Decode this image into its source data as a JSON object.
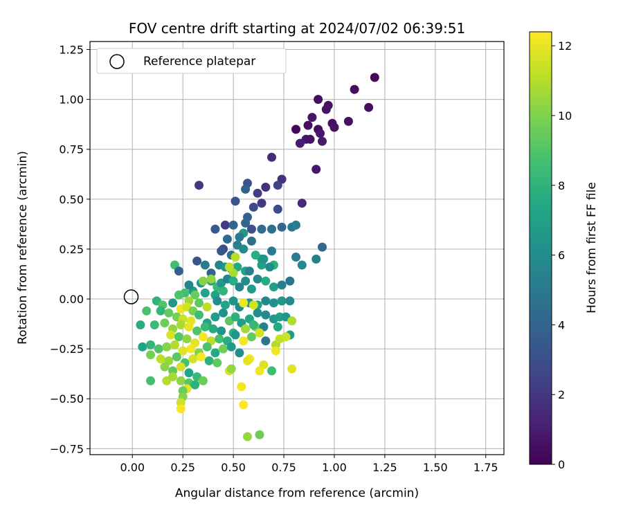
{
  "chart_data": {
    "type": "scatter",
    "title": "FOV centre drift starting at 2024/07/02 06:39:51",
    "xlabel": "Angular distance from reference (arcmin)",
    "ylabel": "Rotation from reference (arcmin)",
    "xlim": [
      -0.21,
      1.84
    ],
    "ylim": [
      -0.78,
      1.29
    ],
    "xticks": [
      0.0,
      0.25,
      0.5,
      0.75,
      1.0,
      1.25,
      1.5,
      1.75
    ],
    "xtick_labels": [
      "0.00",
      "0.25",
      "0.50",
      "0.75",
      "1.00",
      "1.25",
      "1.50",
      "1.75"
    ],
    "yticks": [
      -0.75,
      -0.5,
      -0.25,
      0.0,
      0.25,
      0.5,
      0.75,
      1.0,
      1.25
    ],
    "ytick_labels": [
      "−0.75",
      "−0.50",
      "−0.25",
      "0.00",
      "0.25",
      "0.50",
      "0.75",
      "1.00",
      "1.25"
    ],
    "grid": true,
    "legend": {
      "placement": "upper-left",
      "entries": [
        "Reference platepar"
      ]
    },
    "reference_point": {
      "x": 0.0,
      "y": 0.0,
      "marker": "open-circle"
    },
    "colorbar": {
      "label": "Hours from first FF file",
      "colormap": "viridis",
      "range": [
        0,
        12.4
      ],
      "ticks": [
        0,
        2,
        4,
        6,
        8,
        10,
        12
      ],
      "tick_labels": [
        "0",
        "2",
        "4",
        "6",
        "8",
        "10",
        "12"
      ]
    },
    "points": [
      [
        1.2,
        1.11,
        0.3
      ],
      [
        1.1,
        1.05,
        0.4
      ],
      [
        0.92,
        1.0,
        0.5
      ],
      [
        0.97,
        0.97,
        0.6
      ],
      [
        1.17,
        0.96,
        0.5
      ],
      [
        0.96,
        0.95,
        0.6
      ],
      [
        0.89,
        0.91,
        0.7
      ],
      [
        1.07,
        0.89,
        0.5
      ],
      [
        0.99,
        0.88,
        0.4
      ],
      [
        1.0,
        0.86,
        0.6
      ],
      [
        0.87,
        0.87,
        0.5
      ],
      [
        0.81,
        0.85,
        0.3
      ],
      [
        0.92,
        0.85,
        0.4
      ],
      [
        0.93,
        0.83,
        0.8
      ],
      [
        0.86,
        0.8,
        0.7
      ],
      [
        0.88,
        0.8,
        0.6
      ],
      [
        0.94,
        0.79,
        0.9
      ],
      [
        0.83,
        0.78,
        1.0
      ],
      [
        0.69,
        0.71,
        1.6
      ],
      [
        0.91,
        0.65,
        0.8
      ],
      [
        0.74,
        0.6,
        1.8
      ],
      [
        0.66,
        0.56,
        1.7
      ],
      [
        0.72,
        0.57,
        2.5
      ],
      [
        0.33,
        0.57,
        2.0
      ],
      [
        0.57,
        0.58,
        3.1
      ],
      [
        0.56,
        0.55,
        3.8
      ],
      [
        0.62,
        0.53,
        2.2
      ],
      [
        0.84,
        0.48,
        1.5
      ],
      [
        0.64,
        0.48,
        2.0
      ],
      [
        0.6,
        0.46,
        2.9
      ],
      [
        0.51,
        0.49,
        3.2
      ],
      [
        0.72,
        0.45,
        2.8
      ],
      [
        0.57,
        0.41,
        3.7
      ],
      [
        0.46,
        0.37,
        2.1
      ],
      [
        0.41,
        0.35,
        3.5
      ],
      [
        0.5,
        0.37,
        4.0
      ],
      [
        0.56,
        0.38,
        4.1
      ],
      [
        0.59,
        0.35,
        3.0
      ],
      [
        0.64,
        0.35,
        4.4
      ],
      [
        0.69,
        0.35,
        4.5
      ],
      [
        0.74,
        0.36,
        4.2
      ],
      [
        0.79,
        0.36,
        5.0
      ],
      [
        0.81,
        0.37,
        5.2
      ],
      [
        0.55,
        0.33,
        6.6
      ],
      [
        0.47,
        0.3,
        4.3
      ],
      [
        0.53,
        0.31,
        5.0
      ],
      [
        0.59,
        0.29,
        4.5
      ],
      [
        0.45,
        0.25,
        2.7
      ],
      [
        0.44,
        0.24,
        3.4
      ],
      [
        0.49,
        0.22,
        4.8
      ],
      [
        0.52,
        0.27,
        5.3
      ],
      [
        0.55,
        0.25,
        6.0
      ],
      [
        0.64,
        0.2,
        6.5
      ],
      [
        0.69,
        0.24,
        5.0
      ],
      [
        0.81,
        0.21,
        5.1
      ],
      [
        0.84,
        0.17,
        5.8
      ],
      [
        0.94,
        0.26,
        4.2
      ],
      [
        0.91,
        0.2,
        5.4
      ],
      [
        0.32,
        0.19,
        3.3
      ],
      [
        0.36,
        0.17,
        5.1
      ],
      [
        0.21,
        0.17,
        8.6
      ],
      [
        0.23,
        0.14,
        3.7
      ],
      [
        0.39,
        0.13,
        3.9
      ],
      [
        0.43,
        0.17,
        5.6
      ],
      [
        0.46,
        0.16,
        6.4
      ],
      [
        0.49,
        0.15,
        6.9
      ],
      [
        0.52,
        0.16,
        7.5
      ],
      [
        0.56,
        0.14,
        7.2
      ],
      [
        0.58,
        0.14,
        5.3
      ],
      [
        0.61,
        0.22,
        7.8
      ],
      [
        0.64,
        0.17,
        7.0
      ],
      [
        0.7,
        0.17,
        7.9
      ],
      [
        0.65,
        0.2,
        6.3
      ],
      [
        0.68,
        0.16,
        5.9
      ],
      [
        0.5,
        0.13,
        10.7
      ],
      [
        0.48,
        0.16,
        11.2
      ],
      [
        0.51,
        0.21,
        11.1
      ],
      [
        0.39,
        0.09,
        6.9
      ],
      [
        0.42,
        0.06,
        8.3
      ],
      [
        0.44,
        0.08,
        6.6
      ],
      [
        0.47,
        0.1,
        5.7
      ],
      [
        0.5,
        0.09,
        7.7
      ],
      [
        0.53,
        0.06,
        5.5
      ],
      [
        0.56,
        0.09,
        6.0
      ],
      [
        0.59,
        0.05,
        6.8
      ],
      [
        0.62,
        0.1,
        5.7
      ],
      [
        0.66,
        0.09,
        7.6
      ],
      [
        0.7,
        0.06,
        6.9
      ],
      [
        0.74,
        0.07,
        5.3
      ],
      [
        0.78,
        0.09,
        4.8
      ],
      [
        0.3,
        0.04,
        6.8
      ],
      [
        0.26,
        0.03,
        8.6
      ],
      [
        0.28,
        0.07,
        5.6
      ],
      [
        0.34,
        0.08,
        6.2
      ],
      [
        0.36,
        0.03,
        7.1
      ],
      [
        0.41,
        0.02,
        7.3
      ],
      [
        0.45,
        0.04,
        8.1
      ],
      [
        0.23,
        0.02,
        8.9
      ],
      [
        0.31,
        0.02,
        9.5
      ],
      [
        0.39,
        0.1,
        10.3
      ],
      [
        0.35,
        0.09,
        10.1
      ],
      [
        0.28,
        -0.01,
        10.6
      ],
      [
        0.33,
        -0.02,
        9.3
      ],
      [
        0.37,
        -0.04,
        11.2
      ],
      [
        0.12,
        -0.01,
        8.0
      ],
      [
        0.15,
        -0.03,
        9.0
      ],
      [
        0.2,
        -0.02,
        6.6
      ],
      [
        0.24,
        -0.05,
        12.1
      ],
      [
        0.27,
        -0.04,
        11.6
      ],
      [
        0.3,
        -0.06,
        9.9
      ],
      [
        0.42,
        -0.01,
        6.0
      ],
      [
        0.46,
        -0.03,
        7.1
      ],
      [
        0.5,
        -0.01,
        6.2
      ],
      [
        0.53,
        -0.04,
        5.8
      ],
      [
        0.58,
        -0.02,
        6.4
      ],
      [
        0.62,
        -0.03,
        7.1
      ],
      [
        0.66,
        -0.01,
        5.7
      ],
      [
        0.7,
        -0.02,
        6.2
      ],
      [
        0.74,
        -0.01,
        6.5
      ],
      [
        0.78,
        -0.01,
        5.9
      ],
      [
        0.55,
        -0.02,
        12.1
      ],
      [
        0.6,
        -0.03,
        11.6
      ],
      [
        0.07,
        -0.06,
        8.8
      ],
      [
        0.14,
        -0.06,
        8.1
      ],
      [
        0.18,
        -0.07,
        9.4
      ],
      [
        0.22,
        -0.09,
        9.8
      ],
      [
        0.25,
        -0.1,
        11.4
      ],
      [
        0.29,
        -0.11,
        11.9
      ],
      [
        0.33,
        -0.08,
        8.5
      ],
      [
        0.37,
        -0.12,
        7.2
      ],
      [
        0.41,
        -0.09,
        6.8
      ],
      [
        0.45,
        -0.07,
        6.3
      ],
      [
        0.48,
        -0.11,
        9.2
      ],
      [
        0.51,
        -0.09,
        7.8
      ],
      [
        0.54,
        -0.12,
        6.9
      ],
      [
        0.58,
        -0.1,
        7.4
      ],
      [
        0.62,
        -0.07,
        6.1
      ],
      [
        0.66,
        -0.08,
        5.8
      ],
      [
        0.7,
        -0.1,
        6.6
      ],
      [
        0.73,
        -0.09,
        7.0
      ],
      [
        0.76,
        -0.09,
        6.4
      ],
      [
        0.79,
        -0.11,
        10.9
      ],
      [
        0.61,
        -0.14,
        9.7
      ],
      [
        0.04,
        -0.13,
        7.7
      ],
      [
        0.11,
        -0.13,
        8.4
      ],
      [
        0.16,
        -0.12,
        9.6
      ],
      [
        0.2,
        -0.15,
        10.4
      ],
      [
        0.24,
        -0.13,
        10.8
      ],
      [
        0.28,
        -0.14,
        12.0
      ],
      [
        0.32,
        -0.16,
        9.0
      ],
      [
        0.36,
        -0.14,
        8.3
      ],
      [
        0.4,
        -0.15,
        7.6
      ],
      [
        0.44,
        -0.16,
        6.4
      ],
      [
        0.5,
        -0.17,
        7.9
      ],
      [
        0.56,
        -0.15,
        10.6
      ],
      [
        0.6,
        -0.13,
        8.2
      ],
      [
        0.65,
        -0.14,
        5.3
      ],
      [
        0.72,
        -0.14,
        7.5
      ],
      [
        0.78,
        -0.18,
        6.7
      ],
      [
        0.19,
        -0.18,
        11.7
      ],
      [
        0.23,
        -0.19,
        9.1
      ],
      [
        0.27,
        -0.2,
        10.3
      ],
      [
        0.31,
        -0.22,
        11.9
      ],
      [
        0.35,
        -0.19,
        12.2
      ],
      [
        0.39,
        -0.21,
        11.1
      ],
      [
        0.43,
        -0.2,
        8.6
      ],
      [
        0.47,
        -0.21,
        7.7
      ],
      [
        0.51,
        -0.18,
        6.4
      ],
      [
        0.55,
        -0.21,
        12.2
      ],
      [
        0.59,
        -0.19,
        9.4
      ],
      [
        0.63,
        -0.17,
        11.6
      ],
      [
        0.66,
        -0.21,
        4.8
      ],
      [
        0.71,
        -0.23,
        10.9
      ],
      [
        0.73,
        -0.2,
        11.3
      ],
      [
        0.76,
        -0.19,
        11.4
      ],
      [
        0.05,
        -0.24,
        7.2
      ],
      [
        0.09,
        -0.23,
        8.1
      ],
      [
        0.13,
        -0.25,
        8.9
      ],
      [
        0.17,
        -0.24,
        10.1
      ],
      [
        0.21,
        -0.23,
        10.9
      ],
      [
        0.25,
        -0.26,
        11.8
      ],
      [
        0.29,
        -0.25,
        12.2
      ],
      [
        0.33,
        -0.27,
        10.0
      ],
      [
        0.37,
        -0.24,
        8.8
      ],
      [
        0.41,
        -0.27,
        7.5
      ],
      [
        0.45,
        -0.25,
        9.7
      ],
      [
        0.49,
        -0.24,
        6.6
      ],
      [
        0.53,
        -0.27,
        6.1
      ],
      [
        0.71,
        -0.26,
        12.1
      ],
      [
        0.09,
        -0.28,
        9.8
      ],
      [
        0.14,
        -0.3,
        11.2
      ],
      [
        0.18,
        -0.31,
        10.5
      ],
      [
        0.22,
        -0.29,
        9.2
      ],
      [
        0.26,
        -0.32,
        8.7
      ],
      [
        0.3,
        -0.3,
        11.6
      ],
      [
        0.34,
        -0.29,
        12.3
      ],
      [
        0.38,
        -0.31,
        7.9
      ],
      [
        0.42,
        -0.32,
        9.3
      ],
      [
        0.58,
        -0.3,
        12.1
      ],
      [
        0.57,
        -0.31,
        12.0
      ],
      [
        0.65,
        -0.33,
        11.7
      ],
      [
        0.63,
        -0.36,
        12.1
      ],
      [
        0.48,
        -0.36,
        11.7
      ],
      [
        0.49,
        -0.35,
        10.4
      ],
      [
        0.69,
        -0.36,
        8.5
      ],
      [
        0.79,
        -0.35,
        11.9
      ],
      [
        0.16,
        -0.34,
        10.2
      ],
      [
        0.2,
        -0.36,
        9.4
      ],
      [
        0.24,
        -0.34,
        11.6
      ],
      [
        0.28,
        -0.37,
        7.2
      ],
      [
        0.32,
        -0.39,
        8.3
      ],
      [
        0.35,
        -0.41,
        9.6
      ],
      [
        0.09,
        -0.41,
        8.6
      ],
      [
        0.17,
        -0.41,
        11.0
      ],
      [
        0.2,
        -0.39,
        10.7
      ],
      [
        0.24,
        -0.41,
        10.3
      ],
      [
        0.28,
        -0.42,
        9.1
      ],
      [
        0.31,
        -0.43,
        7.9
      ],
      [
        0.27,
        -0.45,
        12.0
      ],
      [
        0.25,
        -0.46,
        9.5
      ],
      [
        0.25,
        -0.49,
        10.1
      ],
      [
        0.54,
        -0.44,
        12.2
      ],
      [
        0.24,
        -0.52,
        11.5
      ],
      [
        0.24,
        -0.55,
        12.3
      ],
      [
        0.55,
        -0.53,
        12.4
      ],
      [
        0.57,
        -0.69,
        10.4
      ],
      [
        0.63,
        -0.68,
        9.6
      ]
    ]
  }
}
